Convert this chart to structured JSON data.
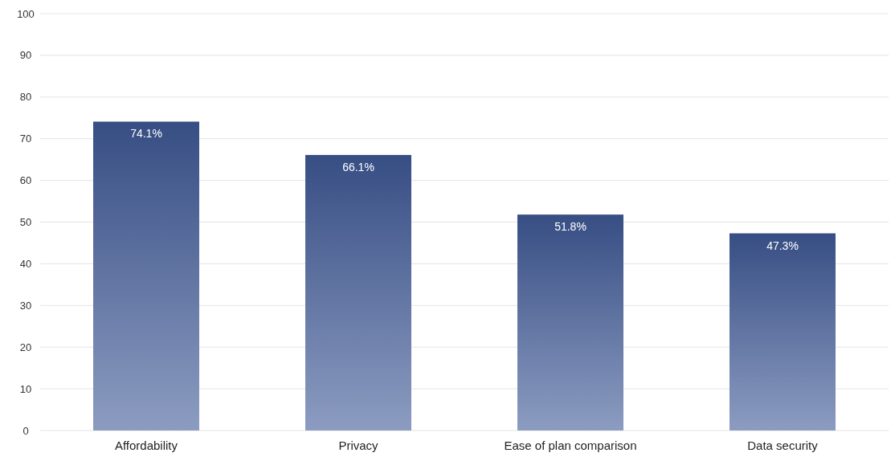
{
  "chart_data": {
    "type": "bar",
    "categories": [
      "Affordability",
      "Privacy",
      "Ease of plan comparison",
      "Data security"
    ],
    "values": [
      74.1,
      66.1,
      51.8,
      47.3
    ],
    "value_labels": [
      "74.1%",
      "66.1%",
      "51.8%",
      "47.3%"
    ],
    "color": "#3f5a98",
    "ylim": [
      0,
      100
    ],
    "yticks": [
      0,
      10,
      20,
      30,
      40,
      50,
      60,
      70,
      80,
      90,
      100
    ],
    "grid": "y"
  }
}
